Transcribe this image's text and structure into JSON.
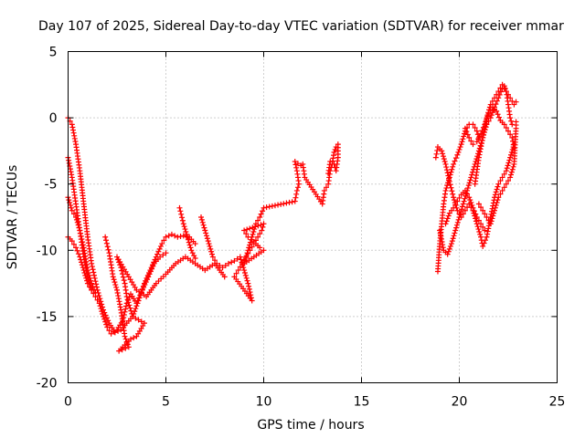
{
  "chart_data": {
    "type": "scatter",
    "title": "Day 107 of 2025, Sidereal Day-to-day VTEC variation (SDTVAR) for receiver mmar",
    "xlabel": "GPS time / hours",
    "ylabel": "SDTVAR / TECUs",
    "xlim": [
      0,
      25
    ],
    "ylim": [
      -20,
      5
    ],
    "x_ticks": [
      0,
      5,
      10,
      15,
      20,
      25
    ],
    "y_ticks": [
      -20,
      -15,
      -10,
      -5,
      0,
      5
    ],
    "x_tick_labels": [
      "0",
      "5",
      "10",
      "15",
      "20",
      "25"
    ],
    "y_tick_labels": [
      "-20",
      "-15",
      "-10",
      "-5",
      "0",
      "5"
    ],
    "grid": true,
    "marker": "plus",
    "color": "#ff0000",
    "series": [
      {
        "points": [
          [
            0.0,
            0.0
          ],
          [
            0.2,
            -0.5
          ],
          [
            0.4,
            -2.0
          ],
          [
            0.6,
            -4.0
          ],
          [
            0.8,
            -6.5
          ],
          [
            1.0,
            -9.0
          ],
          [
            1.2,
            -11.0
          ],
          [
            1.5,
            -13.0
          ],
          [
            1.8,
            -14.5
          ],
          [
            2.1,
            -15.5
          ],
          [
            2.4,
            -16.2
          ],
          [
            2.7,
            -16.0
          ],
          [
            3.0,
            -15.5
          ],
          [
            3.3,
            -15.0
          ],
          [
            3.6,
            -13.8
          ],
          [
            3.9,
            -12.5
          ],
          [
            4.2,
            -11.5
          ],
          [
            4.5,
            -10.5
          ],
          [
            4.8,
            -9.5
          ],
          [
            5.0,
            -9.0
          ],
          [
            5.3,
            -8.8
          ],
          [
            5.6,
            -9.0
          ],
          [
            5.9,
            -8.9
          ],
          [
            6.2,
            -9.0
          ],
          [
            6.5,
            -9.5
          ],
          [
            0.0,
            -3.0
          ],
          [
            0.2,
            -4.5
          ],
          [
            0.4,
            -6.5
          ],
          [
            0.6,
            -8.5
          ],
          [
            0.8,
            -10.5
          ],
          [
            1.0,
            -12.0
          ],
          [
            1.2,
            -13.0
          ],
          [
            1.4,
            -13.5
          ],
          [
            1.6,
            -14.0
          ],
          [
            1.8,
            -15.0
          ],
          [
            2.0,
            -15.8
          ],
          [
            2.2,
            -16.3
          ],
          [
            2.5,
            -16.0
          ],
          [
            2.8,
            -15.3
          ],
          [
            3.0,
            -14.0
          ],
          [
            3.2,
            -13.3
          ],
          [
            3.5,
            -14.0
          ],
          [
            3.8,
            -13.0
          ],
          [
            4.1,
            -12.0
          ],
          [
            4.4,
            -11.0
          ],
          [
            4.7,
            -10.5
          ],
          [
            5.0,
            -10.2
          ],
          [
            0.0,
            -6.0
          ],
          [
            0.2,
            -7.0
          ],
          [
            0.4,
            -7.5
          ],
          [
            0.6,
            -8.5
          ],
          [
            0.8,
            -9.8
          ],
          [
            1.0,
            -11.5
          ],
          [
            1.2,
            -12.5
          ],
          [
            1.4,
            -13.2
          ],
          [
            0.0,
            -9.0
          ],
          [
            0.2,
            -9.3
          ],
          [
            0.4,
            -9.8
          ],
          [
            0.6,
            -10.5
          ],
          [
            0.8,
            -11.5
          ],
          [
            1.0,
            -12.5
          ],
          [
            1.2,
            -13.0
          ],
          [
            1.9,
            -9.0
          ],
          [
            2.1,
            -10.2
          ],
          [
            2.3,
            -12.0
          ],
          [
            2.5,
            -13.0
          ],
          [
            2.7,
            -14.5
          ],
          [
            2.9,
            -16.5
          ],
          [
            3.1,
            -17.3
          ],
          [
            2.6,
            -17.6
          ],
          [
            3.2,
            -16.7
          ],
          [
            3.5,
            -16.5
          ],
          [
            3.9,
            -15.5
          ],
          [
            3.3,
            -15.0
          ],
          [
            3.0,
            -13.5
          ],
          [
            2.9,
            -12.5
          ],
          [
            2.7,
            -11.3
          ],
          [
            2.5,
            -10.5
          ],
          [
            3.1,
            -12.0
          ],
          [
            3.5,
            -13.0
          ],
          [
            4.0,
            -13.5
          ],
          [
            4.5,
            -12.5
          ],
          [
            5.0,
            -11.8
          ],
          [
            5.5,
            -11.0
          ],
          [
            6.0,
            -10.5
          ],
          [
            6.5,
            -11.0
          ],
          [
            7.0,
            -11.5
          ],
          [
            7.5,
            -11.0
          ],
          [
            8.0,
            -12.0
          ],
          [
            5.7,
            -6.8
          ],
          [
            5.9,
            -8.0
          ],
          [
            6.1,
            -9.0
          ],
          [
            6.3,
            -10.0
          ],
          [
            6.5,
            -10.6
          ],
          [
            6.8,
            -7.5
          ],
          [
            7.0,
            -8.5
          ],
          [
            7.2,
            -9.5
          ],
          [
            7.4,
            -10.5
          ],
          [
            7.6,
            -11.0
          ],
          [
            7.9,
            -11.3
          ],
          [
            8.2,
            -11.0
          ],
          [
            8.5,
            -10.8
          ],
          [
            8.8,
            -10.5
          ],
          [
            9.0,
            -11.5
          ],
          [
            9.2,
            -12.5
          ],
          [
            9.4,
            -13.8
          ],
          [
            8.5,
            -12.0
          ],
          [
            8.7,
            -11.5
          ],
          [
            8.9,
            -11.0
          ],
          [
            9.1,
            -10.5
          ],
          [
            9.3,
            -10.0
          ],
          [
            9.5,
            -9.5
          ],
          [
            9.7,
            -9.0
          ],
          [
            9.9,
            -8.5
          ],
          [
            10.0,
            -8.0
          ],
          [
            9.0,
            -8.5
          ],
          [
            9.2,
            -9.0
          ],
          [
            9.4,
            -9.2
          ],
          [
            9.6,
            -9.5
          ],
          [
            9.8,
            -9.8
          ],
          [
            10.0,
            -10.0
          ],
          [
            9.0,
            -11.0
          ],
          [
            9.2,
            -10.0
          ],
          [
            9.4,
            -9.0
          ],
          [
            9.6,
            -8.0
          ],
          [
            9.8,
            -7.5
          ],
          [
            10.0,
            -6.8
          ],
          [
            11.6,
            -6.3
          ],
          [
            11.7,
            -5.5
          ],
          [
            11.8,
            -5.0
          ],
          [
            11.7,
            -4.0
          ],
          [
            11.6,
            -3.3
          ],
          [
            11.9,
            -3.6
          ],
          [
            12.0,
            -3.5
          ],
          [
            12.1,
            -4.5
          ],
          [
            13.0,
            -6.5
          ],
          [
            13.1,
            -5.5
          ],
          [
            13.3,
            -5.0
          ],
          [
            13.4,
            -4.0
          ],
          [
            13.5,
            -3.5
          ],
          [
            13.6,
            -2.6
          ],
          [
            13.7,
            -2.2
          ],
          [
            13.8,
            -2.0
          ],
          [
            13.8,
            -3.0
          ],
          [
            13.7,
            -4.0
          ],
          [
            13.6,
            -3.5
          ],
          [
            13.4,
            -3.3
          ],
          [
            13.3,
            -4.2
          ],
          [
            18.9,
            -11.6
          ],
          [
            19.0,
            -9.5
          ],
          [
            19.1,
            -8.0
          ],
          [
            19.2,
            -6.5
          ],
          [
            19.3,
            -5.5
          ],
          [
            19.5,
            -4.5
          ],
          [
            19.7,
            -3.5
          ],
          [
            19.9,
            -2.8
          ],
          [
            20.1,
            -2.0
          ],
          [
            20.3,
            -1.0
          ],
          [
            20.5,
            -0.5
          ],
          [
            20.7,
            -0.5
          ],
          [
            20.9,
            -1.0
          ],
          [
            21.0,
            -1.5
          ],
          [
            18.8,
            -3.0
          ],
          [
            18.9,
            -2.2
          ],
          [
            19.1,
            -2.5
          ],
          [
            19.3,
            -3.5
          ],
          [
            19.5,
            -4.8
          ],
          [
            19.7,
            -6.0
          ],
          [
            19.9,
            -7.0
          ],
          [
            20.1,
            -7.5
          ],
          [
            20.3,
            -7.0
          ],
          [
            20.5,
            -6.5
          ],
          [
            20.7,
            -7.0
          ],
          [
            20.9,
            -8.0
          ],
          [
            21.1,
            -9.0
          ],
          [
            21.2,
            -9.7
          ],
          [
            21.4,
            -9.0
          ],
          [
            21.6,
            -7.5
          ],
          [
            21.8,
            -6.0
          ],
          [
            22.0,
            -5.0
          ],
          [
            22.2,
            -4.5
          ],
          [
            22.4,
            -4.0
          ],
          [
            22.6,
            -3.0
          ],
          [
            22.8,
            -2.0
          ],
          [
            19.0,
            -8.5
          ],
          [
            19.2,
            -10.0
          ],
          [
            19.4,
            -10.3
          ],
          [
            19.6,
            -9.5
          ],
          [
            19.8,
            -8.5
          ],
          [
            20.0,
            -7.5
          ],
          [
            20.2,
            -6.5
          ],
          [
            20.4,
            -5.5
          ],
          [
            20.6,
            -4.5
          ],
          [
            20.8,
            -3.5
          ],
          [
            21.0,
            -2.5
          ],
          [
            21.2,
            -1.5
          ],
          [
            21.4,
            -0.5
          ],
          [
            21.6,
            0.0
          ],
          [
            21.8,
            0.8
          ],
          [
            22.0,
            1.5
          ],
          [
            22.2,
            2.2
          ],
          [
            22.3,
            2.4
          ],
          [
            22.4,
            2.0
          ],
          [
            22.5,
            1.0
          ],
          [
            22.6,
            0.0
          ],
          [
            22.7,
            -0.5
          ],
          [
            19.3,
            -8.0
          ],
          [
            19.5,
            -7.2
          ],
          [
            19.7,
            -6.8
          ],
          [
            19.9,
            -6.3
          ],
          [
            20.1,
            -5.8
          ],
          [
            20.3,
            -5.5
          ],
          [
            20.5,
            -6.0
          ],
          [
            20.7,
            -6.8
          ],
          [
            20.9,
            -7.5
          ],
          [
            21.1,
            -8.0
          ],
          [
            21.3,
            -8.5
          ],
          [
            20.8,
            -5.0
          ],
          [
            21.0,
            -3.0
          ],
          [
            21.2,
            -1.5
          ],
          [
            21.4,
            0.0
          ],
          [
            21.6,
            1.0
          ],
          [
            21.8,
            1.5
          ],
          [
            22.0,
            2.0
          ],
          [
            22.2,
            2.5
          ],
          [
            22.4,
            2.0
          ],
          [
            22.6,
            1.5
          ],
          [
            22.8,
            1.0
          ],
          [
            22.9,
            1.2
          ],
          [
            20.3,
            -0.8
          ],
          [
            20.5,
            -1.5
          ],
          [
            20.7,
            -2.0
          ],
          [
            20.9,
            -1.8
          ],
          [
            21.1,
            -1.2
          ],
          [
            21.3,
            -0.5
          ],
          [
            21.5,
            0.3
          ],
          [
            21.7,
            0.8
          ],
          [
            21.9,
            0.5
          ],
          [
            22.1,
            -0.2
          ],
          [
            22.3,
            -0.5
          ],
          [
            22.5,
            -1.0
          ],
          [
            22.7,
            -1.5
          ],
          [
            22.8,
            -2.3
          ],
          [
            21.0,
            -6.5
          ],
          [
            21.2,
            -7.0
          ],
          [
            21.4,
            -7.5
          ],
          [
            21.6,
            -8.0
          ],
          [
            21.8,
            -7.0
          ],
          [
            22.0,
            -6.0
          ],
          [
            22.2,
            -5.5
          ],
          [
            22.4,
            -5.0
          ],
          [
            22.6,
            -4.5
          ],
          [
            22.8,
            -3.5
          ],
          [
            22.9,
            -0.8
          ],
          [
            22.9,
            -0.3
          ]
        ]
      }
    ]
  }
}
